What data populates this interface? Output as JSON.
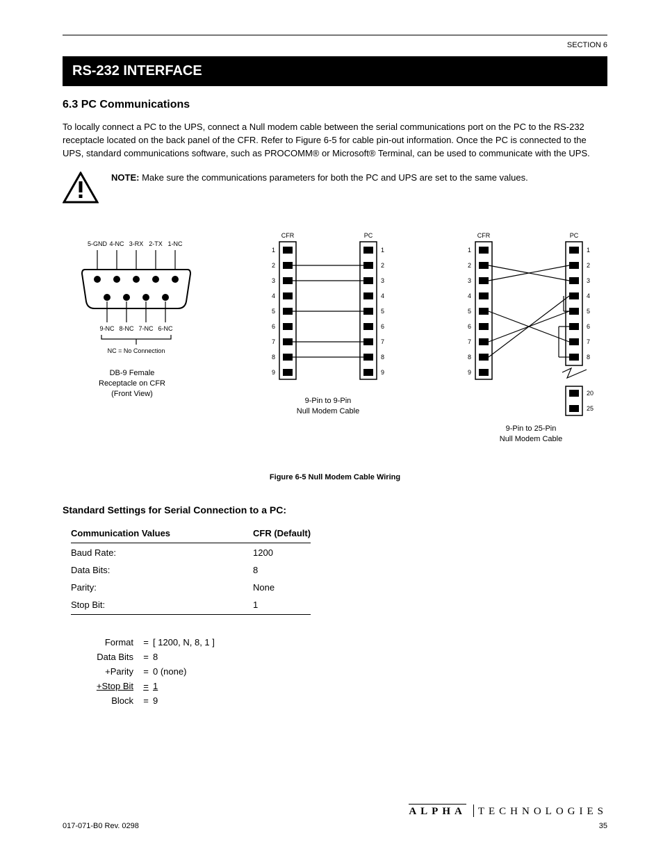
{
  "page_header": "SECTION 6",
  "black_bar": "RS-232 INTERFACE",
  "section_title": "6.3  PC Communications",
  "intro_para": "To locally connect a PC to the UPS, connect a Null modem cable between the serial communications port on the PC to the RS-232 receptacle located on the back panel of the CFR. Refer to Figure 6-5 for cable pin-out information. Once the PC is connected to the UPS, standard communications software, such as PROCOMM® or Microsoft® Terminal, can be used to communicate with the UPS.",
  "note_label": "NOTE:",
  "note_text": "Make sure the communications parameters for both the PC and UPS are set to the same values.",
  "db9": {
    "caption_l1": "DB-9 Female",
    "caption_l2": "Receptacle on CFR",
    "caption_l3": "(Front View)",
    "pins": {
      "p1": "1-NC",
      "p2": "2-TX",
      "p3": "3-RX",
      "p4": "4-NC",
      "p5": "5-GND",
      "p6": "6-NC",
      "p7": "7-NC",
      "p8": "8-NC",
      "p9": "9-NC"
    },
    "bracket_label": "NC = No Connection"
  },
  "nine_to_nine": {
    "left_head": "CFR",
    "right_head": "PC",
    "left_pins": [
      "1",
      "2",
      "3",
      "4",
      "5",
      "6",
      "7",
      "8",
      "9"
    ],
    "right_pins": [
      "1",
      "2",
      "3",
      "4",
      "5",
      "6",
      "7",
      "8",
      "9"
    ],
    "caption_l1": "9-Pin to 9-Pin",
    "caption_l2": "Null Modem Cable"
  },
  "nine_to_25": {
    "left_head": "CFR",
    "right_head": "PC",
    "left_pins": [
      "1",
      "2",
      "3",
      "4",
      "5",
      "6",
      "7",
      "8",
      "9"
    ],
    "right_pins": [
      "1",
      "2",
      "3",
      "4",
      "5",
      "6",
      "7",
      "8",
      "20",
      "25"
    ],
    "caption_l1": "9-Pin to 25-Pin",
    "caption_l2": "Null Modem Cable"
  },
  "figure_caption": "Figure 6-5  Null Modem Cable Wiring",
  "settings_title": "Standard Settings for Serial Connection to a PC:",
  "settings_header_l": "Communication Values",
  "settings_header_r": "CFR (Default)",
  "settings_rows": [
    {
      "l": "Baud Rate:",
      "r": "1200"
    },
    {
      "l": "Data Bits:",
      "r": "8"
    },
    {
      "l": "Parity:",
      "r": "None"
    },
    {
      "l": "Stop Bit:",
      "r": "1"
    }
  ],
  "formula": {
    "line1_l": "Format",
    "line1_r": "[  1200, N, 8, 1 ]",
    "line2_l": "Data Bits",
    "line2_op": "=",
    "line2_r": "8",
    "line3_l": "+Parity",
    "line3_op": "=",
    "line3_r": "0  (none)",
    "line4_l": "+Stop Bit",
    "line4_op": "=",
    "line4_r": "1",
    "line5_l": "Block",
    "line5_op": "=",
    "line5_r": "9"
  },
  "footer_left": "017-071-B0   Rev. 0298",
  "footer_page": "35"
}
